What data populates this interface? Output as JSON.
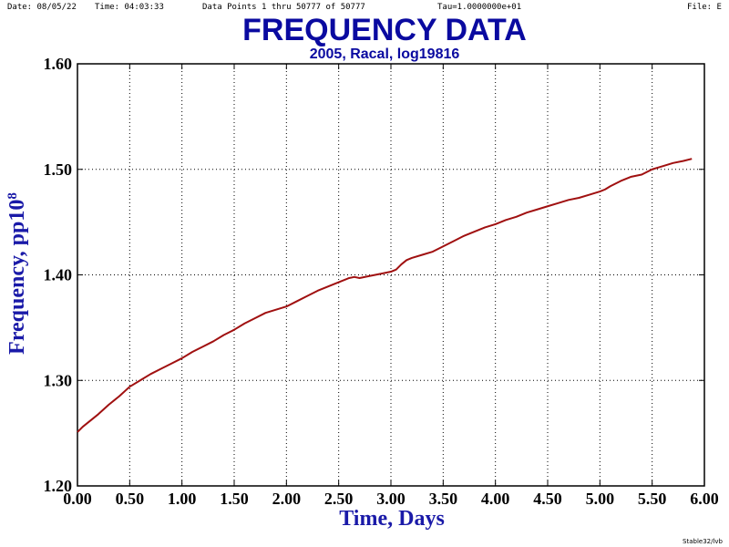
{
  "header": {
    "date": "Date: 08/05/22",
    "time": "Time: 04:03:33",
    "data_points": "Data Points 1 thru 50777 of 50777",
    "tau": "Tau=1.0000000e+01",
    "file": "File: E"
  },
  "footer": {
    "credit": "Stable32/lvb"
  },
  "chart_data": {
    "type": "line",
    "title": "FREQUENCY DATA",
    "subtitle": "2005, Racal, log19816",
    "xlabel": "Time, Days",
    "ylabel_main": "Frequency, pp10",
    "ylabel_exp": "8",
    "xlim": [
      0,
      6
    ],
    "ylim": [
      1.2,
      1.6
    ],
    "x_ticks": [
      "0.00",
      "0.50",
      "1.00",
      "1.50",
      "2.00",
      "2.50",
      "3.00",
      "3.50",
      "4.00",
      "4.50",
      "5.00",
      "5.50",
      "6.00"
    ],
    "y_ticks": [
      "1.20",
      "1.30",
      "1.40",
      "1.50",
      "1.60"
    ],
    "grid": true,
    "line_color": "#a01010",
    "series": [
      {
        "x": [
          0.0,
          0.05,
          0.1,
          0.2,
          0.3,
          0.4,
          0.5,
          0.6,
          0.7,
          0.8,
          0.9,
          1.0,
          1.1,
          1.2,
          1.3,
          1.4,
          1.5,
          1.6,
          1.7,
          1.8,
          1.9,
          2.0,
          2.1,
          2.2,
          2.3,
          2.4,
          2.5,
          2.6,
          2.65,
          2.7,
          2.8,
          2.9,
          3.0,
          3.05,
          3.1,
          3.15,
          3.2,
          3.3,
          3.4,
          3.5,
          3.6,
          3.7,
          3.8,
          3.9,
          4.0,
          4.1,
          4.2,
          4.3,
          4.4,
          4.5,
          4.6,
          4.7,
          4.8,
          4.9,
          5.0,
          5.05,
          5.1,
          5.2,
          5.3,
          5.4,
          5.5,
          5.6,
          5.7,
          5.8,
          5.88
        ],
        "y": [
          1.251,
          1.256,
          1.26,
          1.268,
          1.277,
          1.285,
          1.294,
          1.3,
          1.306,
          1.311,
          1.316,
          1.321,
          1.327,
          1.332,
          1.337,
          1.343,
          1.348,
          1.354,
          1.359,
          1.364,
          1.367,
          1.37,
          1.375,
          1.38,
          1.385,
          1.389,
          1.393,
          1.397,
          1.398,
          1.397,
          1.399,
          1.401,
          1.403,
          1.405,
          1.41,
          1.414,
          1.416,
          1.419,
          1.422,
          1.427,
          1.432,
          1.437,
          1.441,
          1.445,
          1.448,
          1.452,
          1.455,
          1.459,
          1.462,
          1.465,
          1.468,
          1.471,
          1.473,
          1.476,
          1.479,
          1.481,
          1.484,
          1.489,
          1.493,
          1.495,
          1.5,
          1.503,
          1.506,
          1.508,
          1.51
        ]
      }
    ]
  }
}
